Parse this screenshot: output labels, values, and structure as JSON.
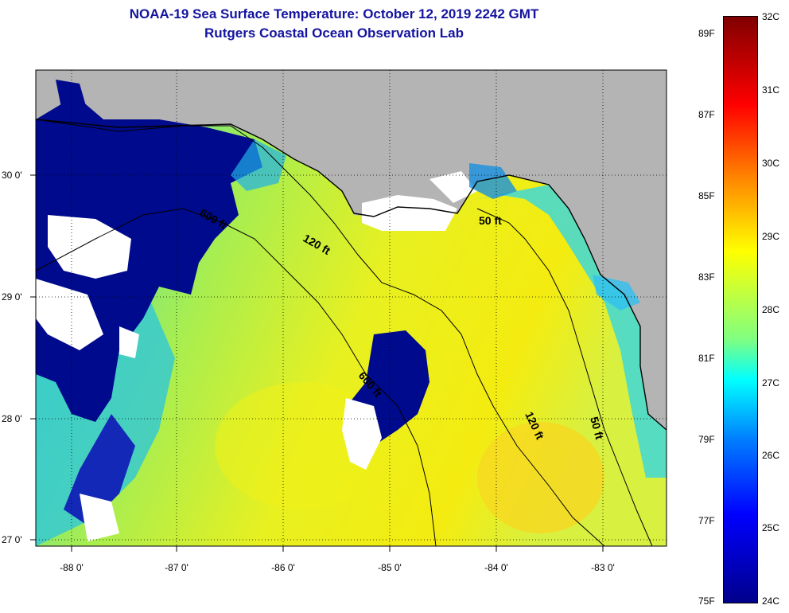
{
  "title": {
    "line1": "NOAA-19 Sea Surface Temperature:  October 12, 2019 2242 GMT",
    "line2": "Rutgers Coastal Ocean Observation Lab"
  },
  "axes": {
    "x_ticks": [
      "-88 0'",
      "-87 0'",
      "-86 0'",
      "-85 0'",
      "-84 0'",
      "-83 0'"
    ],
    "y_ticks": [
      "30 0'",
      "29 0'",
      "28 0'",
      "27 0'"
    ]
  },
  "contours": {
    "label_600": "600 ft",
    "label_120": "120 ft",
    "label_50": "50 ft"
  },
  "colorbar": {
    "fahrenheit": [
      "89F",
      "87F",
      "85F",
      "83F",
      "81F",
      "79F",
      "77F",
      "75F"
    ],
    "celsius": [
      "32C",
      "31C",
      "30C",
      "29C",
      "28C",
      "27C",
      "26C",
      "25C",
      "24C"
    ]
  },
  "colors": {
    "land": "#b4b4b4",
    "title": "#1414a0",
    "cloud": "#ffffff",
    "cold": "#00008b",
    "warm": "#ffff00"
  }
}
